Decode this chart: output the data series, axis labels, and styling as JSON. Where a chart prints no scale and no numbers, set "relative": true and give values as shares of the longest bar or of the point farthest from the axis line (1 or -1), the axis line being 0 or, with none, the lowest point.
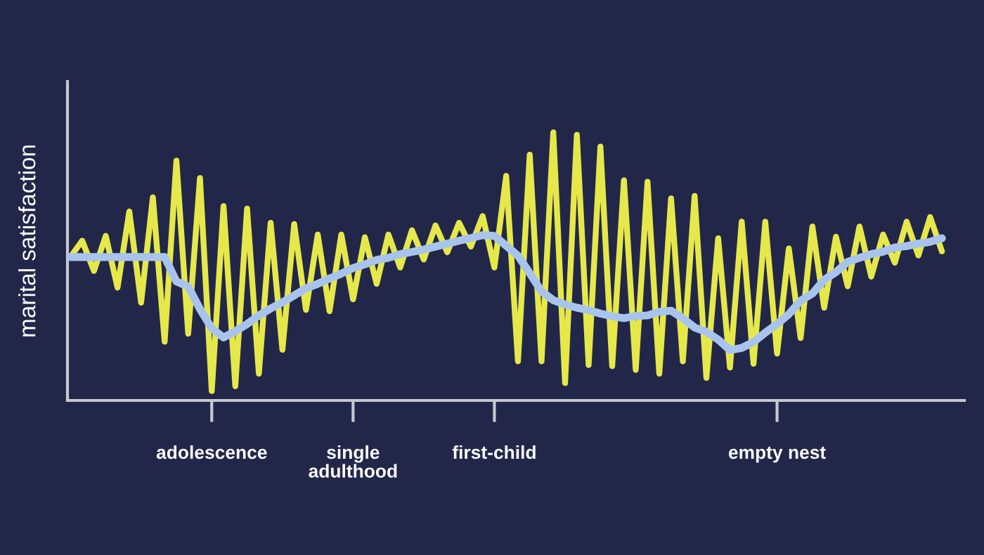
{
  "chart_data": {
    "type": "line",
    "relative": true,
    "ylabel": "marital satisfaction",
    "categories": [
      null,
      null,
      null,
      null,
      null,
      null,
      null,
      null,
      null,
      null,
      null,
      null,
      "adolescence",
      null,
      null,
      null,
      null,
      null,
      null,
      null,
      null,
      null,
      null,
      null,
      "single\nadulthood",
      null,
      null,
      null,
      null,
      null,
      null,
      null,
      null,
      null,
      null,
      null,
      "first-child",
      null,
      null,
      null,
      null,
      null,
      null,
      null,
      null,
      null,
      null,
      null,
      null,
      null,
      null,
      null,
      null,
      null,
      null,
      null,
      null,
      null,
      null,
      null,
      "empty nest",
      null,
      null,
      null,
      null,
      null,
      null,
      null,
      null,
      null,
      null,
      null,
      null,
      null,
      null
    ],
    "series": [
      {
        "color": "#e6e84a",
        "values": [
          0.535,
          0.596,
          0.483,
          0.614,
          0.421,
          0.705,
          0.365,
          0.758,
          0.219,
          0.895,
          0.249,
          0.83,
          0.035,
          0.725,
          0.053,
          0.716,
          0.1,
          0.663,
          0.189,
          0.658,
          0.338,
          0.619,
          0.333,
          0.619,
          0.377,
          0.609,
          0.435,
          0.619,
          0.496,
          0.635,
          0.526,
          0.653,
          0.553,
          0.663,
          0.574,
          0.688,
          0.496,
          0.838,
          0.146,
          0.917,
          0.146,
          1.0,
          0.065,
          0.991,
          0.132,
          0.947,
          0.128,
          0.821,
          0.114,
          0.816,
          0.1,
          0.754,
          0.146,
          0.763,
          0.084,
          0.605,
          0.123,
          0.667,
          0.137,
          0.667,
          0.175,
          0.567,
          0.233,
          0.649,
          0.346,
          0.611,
          0.426,
          0.649,
          0.462,
          0.619,
          0.514,
          0.667,
          0.541,
          0.684,
          0.556
        ]
      },
      {
        "color": "#a9c4ec",
        "values": [
          0.535,
          0.535,
          0.535,
          0.535,
          0.535,
          0.535,
          0.535,
          0.535,
          0.535,
          0.444,
          0.425,
          0.341,
          0.269,
          0.235,
          0.258,
          0.285,
          0.317,
          0.343,
          0.366,
          0.392,
          0.418,
          0.435,
          0.455,
          0.473,
          0.494,
          0.508,
          0.524,
          0.532,
          0.546,
          0.554,
          0.563,
          0.574,
          0.585,
          0.596,
          0.606,
          0.617,
          0.614,
          0.577,
          0.54,
          0.475,
          0.407,
          0.374,
          0.358,
          0.346,
          0.337,
          0.324,
          0.314,
          0.307,
          0.315,
          0.317,
          0.331,
          0.335,
          0.306,
          0.272,
          0.256,
          0.227,
          0.188,
          0.196,
          0.218,
          0.253,
          0.285,
          0.322,
          0.372,
          0.399,
          0.45,
          0.479,
          0.517,
          0.532,
          0.546,
          0.555,
          0.571,
          0.576,
          0.585,
          0.592,
          0.605
        ]
      }
    ]
  }
}
